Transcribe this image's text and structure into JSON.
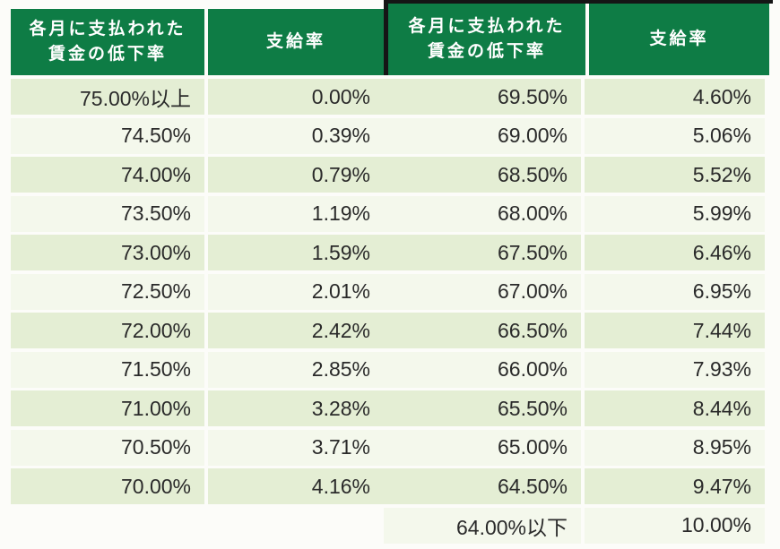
{
  "header": {
    "decline_line1": "各月に支払われた",
    "decline_line2": "賃金の低下率",
    "payment": "支給率"
  },
  "chart_data": {
    "type": "table",
    "columns": [
      "各月に支払われた賃金の低下率",
      "支給率",
      "各月に支払われた賃金の低下率",
      "支給率"
    ],
    "left_rows": [
      {
        "decline": "75.00%以上",
        "rate": "0.00%"
      },
      {
        "decline": "74.50%",
        "rate": "0.39%"
      },
      {
        "decline": "74.00%",
        "rate": "0.79%"
      },
      {
        "decline": "73.50%",
        "rate": "1.19%"
      },
      {
        "decline": "73.00%",
        "rate": "1.59%"
      },
      {
        "decline": "72.50%",
        "rate": "2.01%"
      },
      {
        "decline": "72.00%",
        "rate": "2.42%"
      },
      {
        "decline": "71.50%",
        "rate": "2.85%"
      },
      {
        "decline": "71.00%",
        "rate": "3.28%"
      },
      {
        "decline": "70.50%",
        "rate": "3.71%"
      },
      {
        "decline": "70.00%",
        "rate": "4.16%"
      }
    ],
    "right_rows": [
      {
        "decline": "69.50%",
        "rate": "4.60%"
      },
      {
        "decline": "69.00%",
        "rate": "5.06%"
      },
      {
        "decline": "68.50%",
        "rate": "5.52%"
      },
      {
        "decline": "68.00%",
        "rate": "5.99%"
      },
      {
        "decline": "67.50%",
        "rate": "6.46%"
      },
      {
        "decline": "67.00%",
        "rate": "6.95%"
      },
      {
        "decline": "66.50%",
        "rate": "7.44%"
      },
      {
        "decline": "66.00%",
        "rate": "7.93%"
      },
      {
        "decline": "65.50%",
        "rate": "8.44%"
      },
      {
        "decline": "65.00%",
        "rate": "8.95%"
      },
      {
        "decline": "64.50%",
        "rate": "9.47%"
      },
      {
        "decline": "64.00%以下",
        "rate": "10.00%"
      }
    ]
  },
  "colors": {
    "header_bg": "#0e7c45",
    "row_dark": "#e4eed4",
    "row_light": "#f4f8ec",
    "divider": "#151515",
    "text": "#2a2a2a",
    "canvas_bg": "#fcfcf9"
  }
}
